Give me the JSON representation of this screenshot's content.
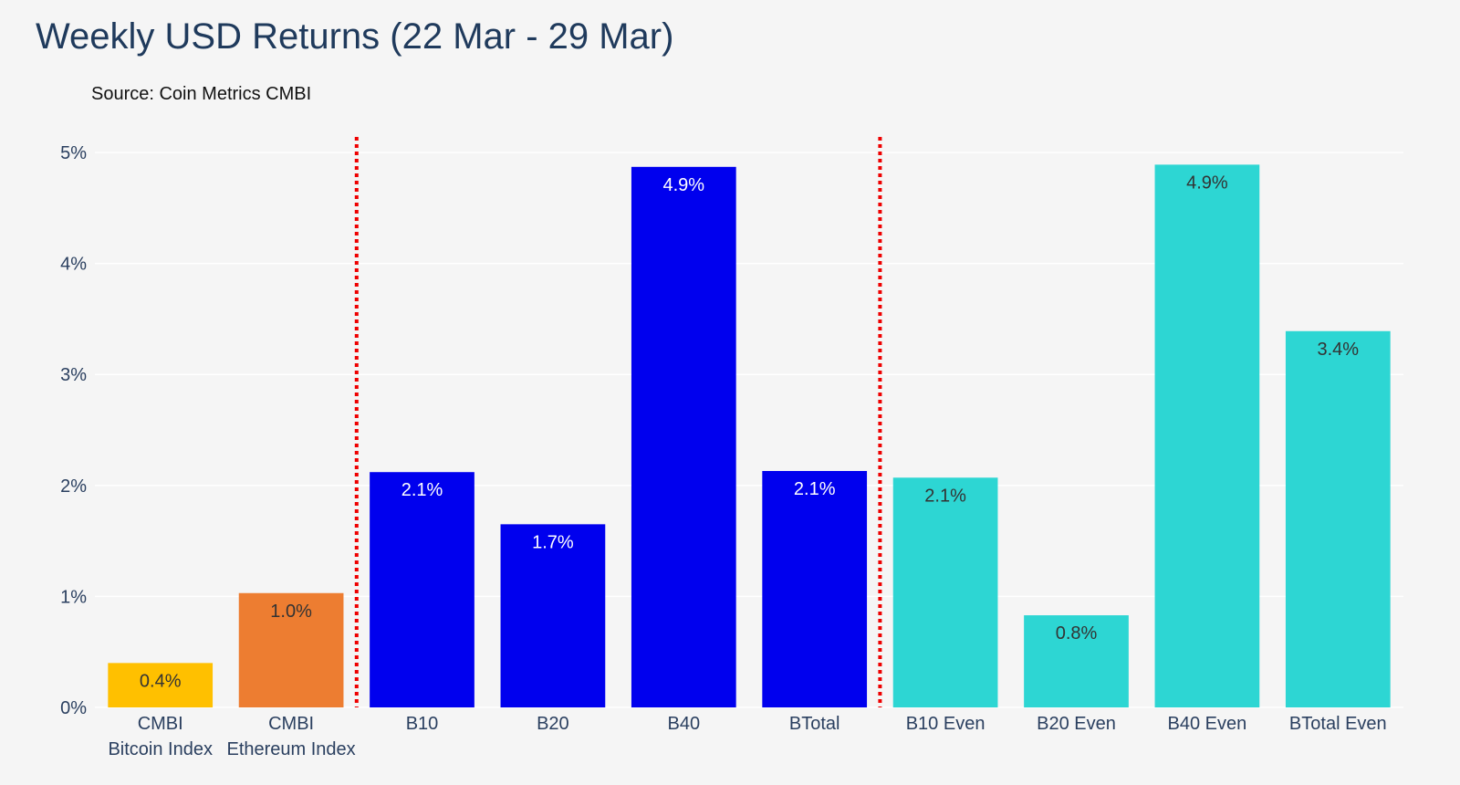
{
  "chart_data": {
    "type": "bar",
    "title": "Weekly USD Returns (22 Mar - 29 Mar)",
    "subtitle": "Source: Coin Metrics CMBI",
    "xlabel": "",
    "ylabel": "",
    "ylim": [
      0,
      5
    ],
    "y_ticks": [
      {
        "value": 0,
        "label": "0%"
      },
      {
        "value": 1,
        "label": "1%"
      },
      {
        "value": 2,
        "label": "2%"
      },
      {
        "value": 3,
        "label": "3%"
      },
      {
        "value": 4,
        "label": "4%"
      },
      {
        "value": 5,
        "label": "5%"
      }
    ],
    "grid": true,
    "legend": "none",
    "bars": [
      {
        "category": [
          "CMBI",
          "Bitcoin Index"
        ],
        "value": 0.4,
        "label": "0.4%",
        "color": "#ffc000",
        "label_color": "#333333"
      },
      {
        "category": [
          "CMBI",
          "Ethereum Index"
        ],
        "value": 1.03,
        "label": "1.0%",
        "color": "#ed7d31",
        "label_color": "#333333"
      },
      {
        "category": [
          "B10"
        ],
        "value": 2.12,
        "label": "2.1%",
        "color": "#0000ee",
        "label_color": "#ffffff"
      },
      {
        "category": [
          "B20"
        ],
        "value": 1.65,
        "label": "1.7%",
        "color": "#0000ee",
        "label_color": "#ffffff"
      },
      {
        "category": [
          "B40"
        ],
        "value": 4.87,
        "label": "4.9%",
        "color": "#0000ee",
        "label_color": "#ffffff"
      },
      {
        "category": [
          "BTotal"
        ],
        "value": 2.13,
        "label": "2.1%",
        "color": "#0000ee",
        "label_color": "#ffffff"
      },
      {
        "category": [
          "B10 Even"
        ],
        "value": 2.07,
        "label": "2.1%",
        "color": "#2dd6d3",
        "label_color": "#333333"
      },
      {
        "category": [
          "B20 Even"
        ],
        "value": 0.83,
        "label": "0.8%",
        "color": "#2dd6d3",
        "label_color": "#333333"
      },
      {
        "category": [
          "B40 Even"
        ],
        "value": 4.89,
        "label": "4.9%",
        "color": "#2dd6d3",
        "label_color": "#333333"
      },
      {
        "category": [
          "BTotal Even"
        ],
        "value": 3.39,
        "label": "3.4%",
        "color": "#2dd6d3",
        "label_color": "#333333"
      }
    ],
    "separators_after_index": [
      1,
      5
    ],
    "separator_color": "#ee0000",
    "grid_color": "#ffffff"
  }
}
